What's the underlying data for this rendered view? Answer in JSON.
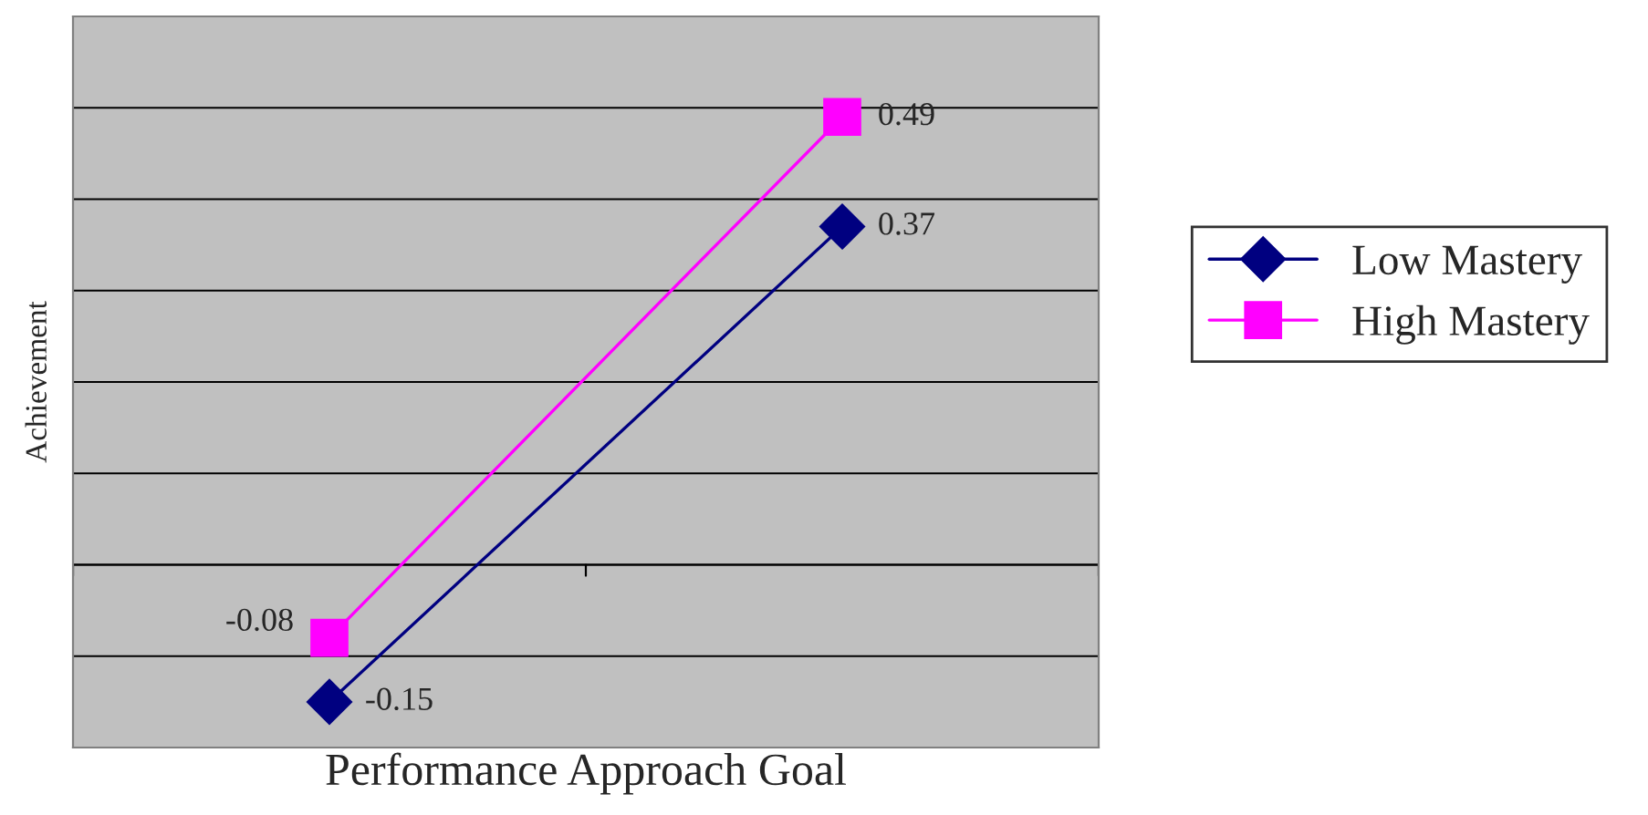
{
  "chart_data": {
    "type": "line",
    "xlabel": "Performance Approach Goal",
    "ylabel": "Achievement",
    "categories": [
      null,
      null
    ],
    "series": [
      {
        "name": "Low Mastery",
        "color": "#000080",
        "values": [
          -0.15,
          0.37
        ],
        "marker": "diamond"
      },
      {
        "name": "High Mastery",
        "color": "#ff00ff",
        "values": [
          -0.08,
          0.49
        ],
        "marker": "square"
      }
    ],
    "ylim": [
      -0.2,
      0.6
    ],
    "yticks": [
      {
        "value": -0.2,
        "label": null
      },
      {
        "value": -0.1,
        "label": null
      },
      {
        "value": 0,
        "label": null
      },
      {
        "value": 0.1,
        "label": null
      },
      {
        "value": 0.2,
        "label": null
      },
      {
        "value": 0.3,
        "label": null
      },
      {
        "value": 0.4,
        "label": null
      },
      {
        "value": 0.5,
        "label": null
      },
      {
        "value": 0.6,
        "label": null
      }
    ],
    "grid": "y",
    "legend": "right",
    "data_labels": true,
    "tick_labels": false,
    "line_style": "solid"
  }
}
